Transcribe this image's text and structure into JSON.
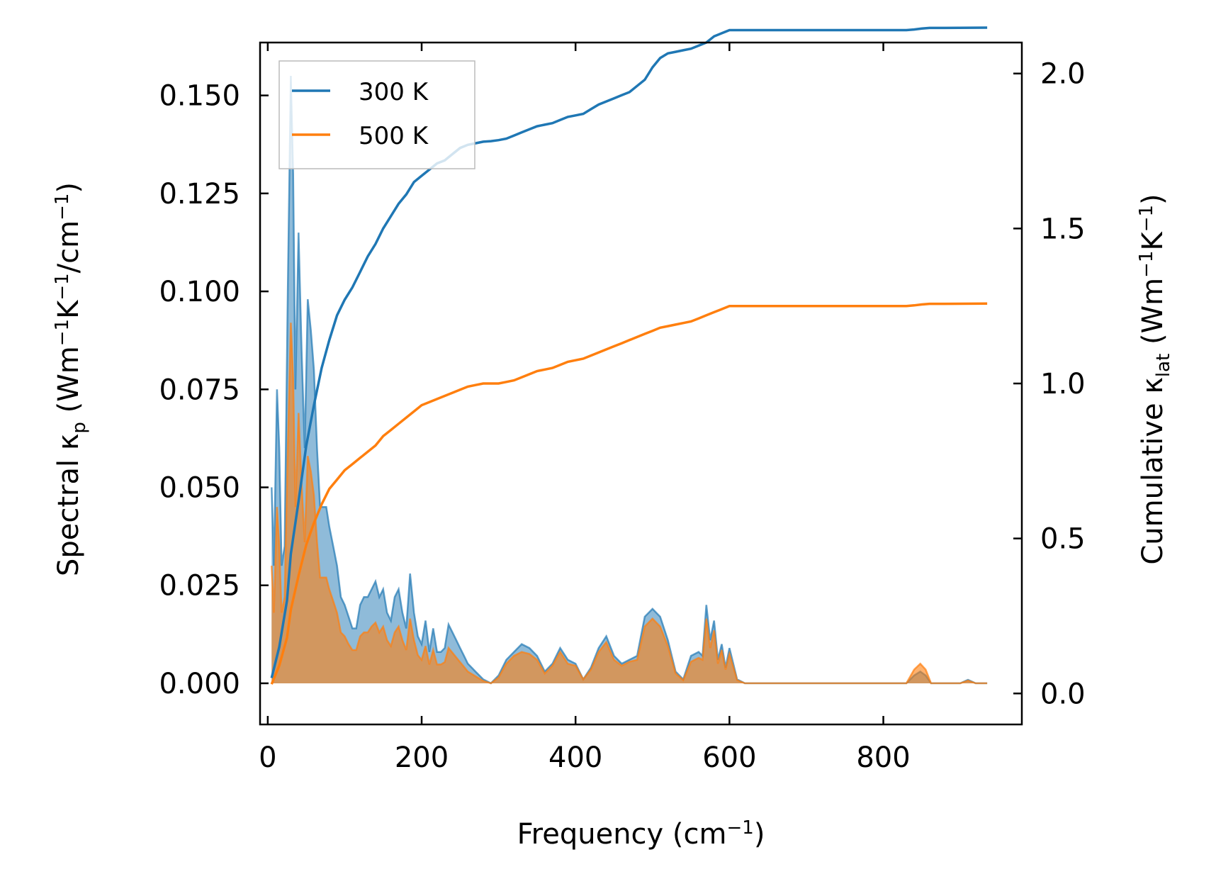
{
  "chart_data": {
    "type": "line",
    "title": "",
    "xlabel": "Frequency (cm",
    "xlabel_sup": "−1",
    "xlabel_tail": ")",
    "ylabel_left_parts": [
      "Spectral κ",
      "p",
      " (Wm",
      "−1",
      "K",
      "−1",
      "/cm",
      "−1",
      ")"
    ],
    "ylabel_right_parts": [
      "Cumulative κ",
      "lat",
      " (Wm",
      "−1",
      "K",
      "−1",
      ")"
    ],
    "xlim": [
      -10,
      980
    ],
    "ylim_left": [
      -0.0105,
      0.1635
    ],
    "ylim_right": [
      -0.1,
      2.1
    ],
    "x_ticks": [
      0,
      200,
      400,
      600,
      800
    ],
    "x_tick_labels": [
      "0",
      "200",
      "400",
      "600",
      "800"
    ],
    "y_left_ticks": [
      0.0,
      0.025,
      0.05,
      0.075,
      0.1,
      0.125,
      0.15
    ],
    "y_left_tick_labels": [
      "0.000",
      "0.025",
      "0.050",
      "0.075",
      "0.100",
      "0.125",
      "0.150"
    ],
    "y_right_ticks": [
      0.0,
      0.5,
      1.0,
      1.5,
      2.0
    ],
    "y_right_tick_labels": [
      "0.0",
      "0.5",
      "1.0",
      "1.5",
      "2.0"
    ],
    "legend": {
      "position": "top-left",
      "entries": [
        "300 K",
        "500 K"
      ]
    },
    "series": [
      {
        "name": "300 K",
        "color": "#1f77b4",
        "spectral": {
          "x": [
            5,
            8,
            12,
            15,
            18,
            22,
            26,
            30,
            33,
            36,
            40,
            44,
            48,
            52,
            56,
            60,
            64,
            68,
            72,
            76,
            80,
            85,
            90,
            95,
            100,
            105,
            110,
            115,
            120,
            125,
            130,
            135,
            140,
            145,
            150,
            155,
            160,
            165,
            170,
            175,
            180,
            185,
            190,
            195,
            200,
            205,
            210,
            215,
            220,
            225,
            230,
            235,
            240,
            245,
            250,
            255,
            260,
            265,
            270,
            280,
            290,
            300,
            310,
            320,
            330,
            340,
            350,
            360,
            370,
            380,
            390,
            400,
            410,
            420,
            430,
            440,
            450,
            460,
            470,
            480,
            490,
            500,
            510,
            520,
            530,
            540,
            550,
            560,
            565,
            570,
            575,
            580,
            585,
            590,
            595,
            600,
            610,
            620,
            700,
            800,
            830,
            840,
            848,
            855,
            862,
            870,
            900,
            910,
            920,
            935
          ],
          "y": [
            0.05,
            0.03,
            0.075,
            0.06,
            0.03,
            0.035,
            0.1,
            0.155,
            0.13,
            0.075,
            0.115,
            0.085,
            0.06,
            0.098,
            0.09,
            0.08,
            0.06,
            0.045,
            0.045,
            0.045,
            0.04,
            0.035,
            0.03,
            0.022,
            0.02,
            0.017,
            0.014,
            0.014,
            0.02,
            0.022,
            0.022,
            0.024,
            0.026,
            0.022,
            0.024,
            0.018,
            0.016,
            0.022,
            0.024,
            0.018,
            0.014,
            0.028,
            0.018,
            0.012,
            0.01,
            0.016,
            0.008,
            0.014,
            0.008,
            0.008,
            0.009,
            0.015,
            0.013,
            0.011,
            0.009,
            0.007,
            0.005,
            0.004,
            0.003,
            0.001,
            0.0,
            0.002,
            0.006,
            0.008,
            0.01,
            0.009,
            0.007,
            0.003,
            0.005,
            0.009,
            0.006,
            0.005,
            0.001,
            0.004,
            0.009,
            0.012,
            0.007,
            0.005,
            0.006,
            0.007,
            0.017,
            0.019,
            0.017,
            0.011,
            0.003,
            0.001,
            0.007,
            0.008,
            0.007,
            0.02,
            0.011,
            0.016,
            0.006,
            0.01,
            0.004,
            0.009,
            0.001,
            0.0,
            0.0,
            0.0,
            0.0,
            0.002,
            0.003,
            0.002,
            0.0,
            0.0,
            0.0,
            0.0009,
            0.0,
            0.0
          ]
        },
        "cumulative": {
          "x": [
            5,
            15,
            25,
            30,
            40,
            50,
            60,
            70,
            80,
            90,
            100,
            110,
            120,
            130,
            140,
            150,
            160,
            170,
            180,
            190,
            200,
            210,
            220,
            230,
            240,
            250,
            260,
            270,
            280,
            290,
            300,
            310,
            320,
            330,
            340,
            350,
            360,
            370,
            380,
            390,
            400,
            410,
            420,
            430,
            440,
            450,
            460,
            470,
            480,
            490,
            500,
            510,
            520,
            530,
            540,
            550,
            560,
            570,
            580,
            590,
            600,
            610,
            700,
            800,
            830,
            840,
            850,
            860,
            880,
            935
          ],
          "y": [
            0.05,
            0.15,
            0.3,
            0.45,
            0.62,
            0.8,
            0.93,
            1.05,
            1.14,
            1.22,
            1.27,
            1.31,
            1.36,
            1.41,
            1.45,
            1.5,
            1.54,
            1.58,
            1.61,
            1.65,
            1.67,
            1.69,
            1.71,
            1.72,
            1.74,
            1.76,
            1.77,
            1.775,
            1.78,
            1.782,
            1.785,
            1.79,
            1.8,
            1.81,
            1.82,
            1.83,
            1.835,
            1.84,
            1.85,
            1.86,
            1.865,
            1.87,
            1.885,
            1.9,
            1.91,
            1.92,
            1.93,
            1.94,
            1.96,
            1.98,
            2.02,
            2.05,
            2.065,
            2.07,
            2.075,
            2.08,
            2.09,
            2.1,
            2.12,
            2.13,
            2.14,
            2.14,
            2.14,
            2.14,
            2.14,
            2.142,
            2.145,
            2.147,
            2.147,
            2.148
          ]
        }
      },
      {
        "name": "500 K",
        "color": "#ff7f0e",
        "spectral": {
          "x": [
            5,
            8,
            12,
            15,
            18,
            22,
            26,
            30,
            33,
            36,
            40,
            44,
            48,
            52,
            56,
            60,
            64,
            68,
            72,
            76,
            80,
            85,
            90,
            95,
            100,
            105,
            110,
            115,
            120,
            125,
            130,
            135,
            140,
            145,
            150,
            155,
            160,
            165,
            170,
            175,
            180,
            185,
            190,
            195,
            200,
            205,
            210,
            215,
            220,
            225,
            230,
            235,
            240,
            245,
            250,
            255,
            260,
            265,
            270,
            280,
            290,
            300,
            310,
            320,
            330,
            340,
            350,
            360,
            370,
            380,
            390,
            400,
            410,
            420,
            430,
            440,
            450,
            460,
            470,
            480,
            490,
            500,
            510,
            520,
            530,
            540,
            550,
            560,
            565,
            570,
            575,
            580,
            585,
            590,
            595,
            600,
            610,
            620,
            700,
            800,
            830,
            840,
            848,
            855,
            862,
            870,
            900,
            910,
            920,
            935
          ],
          "y": [
            0.03,
            0.018,
            0.045,
            0.035,
            0.018,
            0.022,
            0.06,
            0.092,
            0.078,
            0.045,
            0.069,
            0.051,
            0.036,
            0.058,
            0.054,
            0.048,
            0.036,
            0.027,
            0.027,
            0.027,
            0.024,
            0.021,
            0.018,
            0.013,
            0.012,
            0.01,
            0.0085,
            0.0085,
            0.012,
            0.013,
            0.013,
            0.0145,
            0.0155,
            0.013,
            0.0145,
            0.011,
            0.0095,
            0.013,
            0.0145,
            0.011,
            0.0085,
            0.0165,
            0.011,
            0.0072,
            0.006,
            0.0095,
            0.0048,
            0.0085,
            0.0048,
            0.0048,
            0.0054,
            0.009,
            0.0078,
            0.0066,
            0.0054,
            0.0042,
            0.003,
            0.0024,
            0.0018,
            0.0006,
            0.0,
            0.0015,
            0.005,
            0.007,
            0.008,
            0.0075,
            0.006,
            0.0025,
            0.0045,
            0.008,
            0.005,
            0.0045,
            0.001,
            0.0035,
            0.008,
            0.0105,
            0.006,
            0.0045,
            0.0055,
            0.006,
            0.0145,
            0.0165,
            0.0145,
            0.0095,
            0.0025,
            0.0008,
            0.0055,
            0.0065,
            0.006,
            0.0165,
            0.009,
            0.0135,
            0.005,
            0.0085,
            0.0035,
            0.0075,
            0.0008,
            0.0,
            0.0,
            0.0,
            0.0,
            0.0035,
            0.005,
            0.0035,
            0.0,
            0.0,
            0.0,
            0.0007,
            0.0,
            0.0
          ]
        },
        "cumulative": {
          "x": [
            5,
            15,
            25,
            30,
            40,
            50,
            60,
            70,
            80,
            90,
            100,
            110,
            120,
            130,
            140,
            150,
            160,
            170,
            180,
            190,
            200,
            210,
            220,
            230,
            240,
            250,
            260,
            270,
            280,
            290,
            300,
            310,
            320,
            330,
            340,
            350,
            360,
            370,
            380,
            390,
            400,
            410,
            420,
            430,
            440,
            450,
            460,
            470,
            480,
            490,
            500,
            510,
            520,
            530,
            540,
            550,
            560,
            570,
            580,
            590,
            600,
            610,
            700,
            800,
            830,
            840,
            850,
            860,
            880,
            935
          ],
          "y": [
            0.03,
            0.09,
            0.18,
            0.27,
            0.38,
            0.48,
            0.55,
            0.61,
            0.66,
            0.69,
            0.72,
            0.74,
            0.76,
            0.78,
            0.8,
            0.83,
            0.85,
            0.87,
            0.89,
            0.91,
            0.93,
            0.94,
            0.95,
            0.96,
            0.97,
            0.98,
            0.99,
            0.995,
            1.0,
            1.0,
            1.0,
            1.005,
            1.01,
            1.02,
            1.03,
            1.04,
            1.045,
            1.05,
            1.06,
            1.07,
            1.075,
            1.08,
            1.09,
            1.1,
            1.11,
            1.12,
            1.13,
            1.14,
            1.15,
            1.16,
            1.17,
            1.18,
            1.185,
            1.19,
            1.195,
            1.2,
            1.21,
            1.22,
            1.23,
            1.24,
            1.25,
            1.25,
            1.25,
            1.25,
            1.25,
            1.252,
            1.255,
            1.257,
            1.257,
            1.258
          ]
        }
      }
    ]
  }
}
